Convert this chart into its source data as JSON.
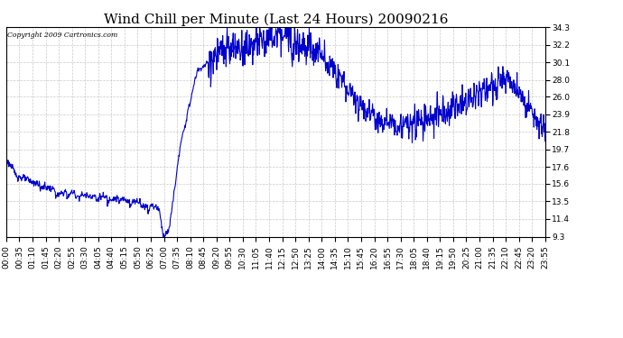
{
  "title": "Wind Chill per Minute (Last 24 Hours) 20090216",
  "copyright": "Copyright 2009 Cartronics.com",
  "y_min": 9.3,
  "y_max": 34.3,
  "y_ticks": [
    9.3,
    11.4,
    13.5,
    15.6,
    17.6,
    19.7,
    21.8,
    23.9,
    26.0,
    28.0,
    30.1,
    32.2,
    34.3
  ],
  "x_tick_labels": [
    "00:00",
    "00:35",
    "01:10",
    "01:45",
    "02:20",
    "02:55",
    "03:30",
    "04:05",
    "04:40",
    "05:15",
    "05:50",
    "06:25",
    "07:00",
    "07:35",
    "08:10",
    "08:45",
    "09:20",
    "09:55",
    "10:30",
    "11:05",
    "11:40",
    "12:15",
    "12:50",
    "13:25",
    "14:00",
    "14:35",
    "15:10",
    "15:45",
    "16:20",
    "16:55",
    "17:30",
    "18:05",
    "18:40",
    "19:15",
    "19:50",
    "20:25",
    "21:00",
    "21:35",
    "22:10",
    "22:45",
    "23:20",
    "23:55"
  ],
  "line_color": "#0000CC",
  "background_color": "#FFFFFF",
  "grid_color": "#BBBBBB",
  "title_fontsize": 11,
  "tick_fontsize": 6.5
}
